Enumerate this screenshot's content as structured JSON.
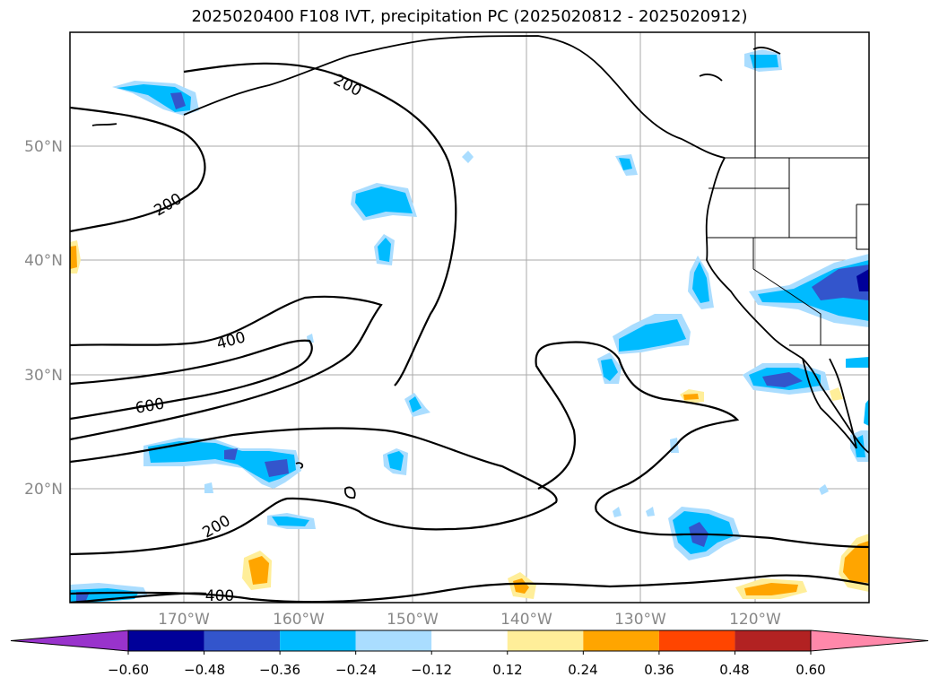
{
  "title": "2025020400 F108 IVT, precipitation PC (2025020812 - 2025020912)",
  "map": {
    "lat_labels": [
      "50°N",
      "40°N",
      "30°N",
      "20°N"
    ],
    "lon_labels": [
      "170°W",
      "160°W",
      "150°W",
      "140°W",
      "130°W",
      "120°W"
    ],
    "contour_labels": [
      "200",
      "200",
      "400",
      "600",
      "200",
      "400"
    ]
  },
  "colorbar": {
    "colors": [
      "#9933cc",
      "#000099",
      "#3355cc",
      "#00bbff",
      "#aaddff",
      "#ffffff",
      "#ffee99",
      "#ffa500",
      "#ff4500",
      "#b22222",
      "#ff88aa"
    ],
    "tick_labels": [
      "−0.60",
      "−0.48",
      "−0.36",
      "−0.24",
      "−0.12",
      "0.12",
      "0.24",
      "0.36",
      "0.48",
      "0.60"
    ]
  }
}
